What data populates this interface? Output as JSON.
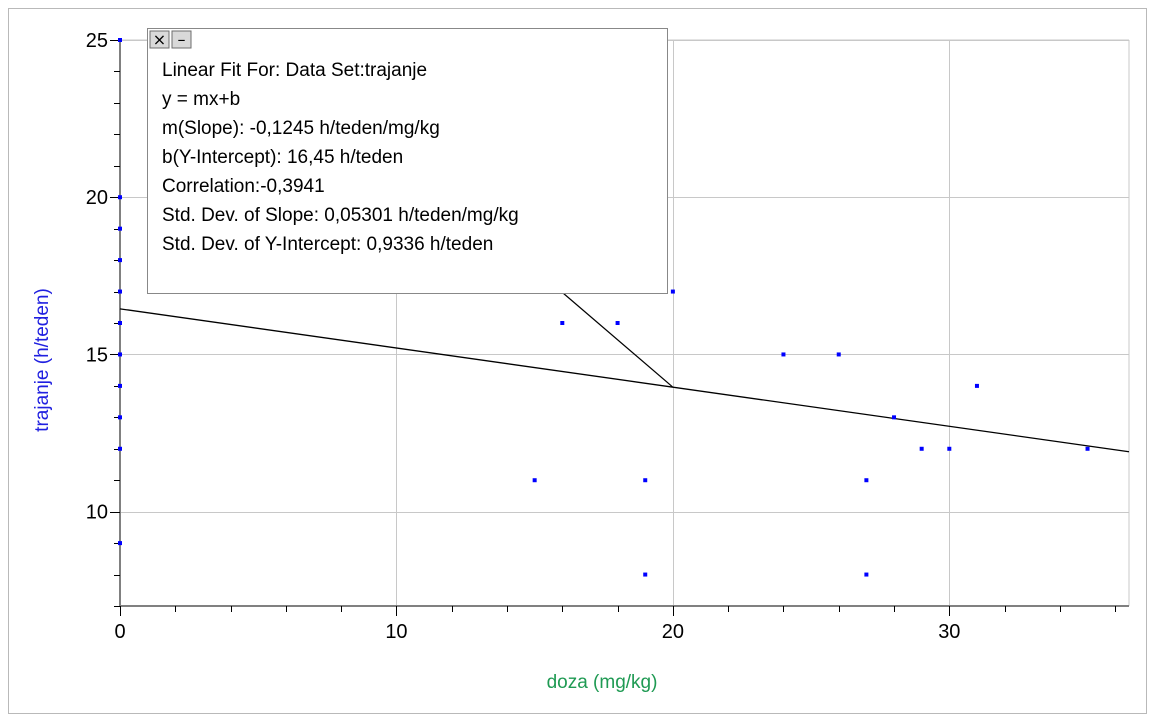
{
  "chart_data": {
    "type": "scatter",
    "title": "",
    "xlabel": "doza (mg/kg)",
    "ylabel": "trajanje (h/teden)",
    "xlim": [
      0,
      36.5
    ],
    "ylim": [
      7,
      25
    ],
    "xticks": [
      "0",
      "10",
      "20",
      "30"
    ],
    "yticks": [
      "10",
      "15",
      "20",
      "25"
    ],
    "xtick_values": [
      0,
      10,
      20,
      30
    ],
    "ytick_values": [
      10,
      15,
      20,
      25
    ],
    "grid": true,
    "label_colors": {
      "xlabel": "#1f9a53",
      "ylabel": "#2020e0"
    },
    "point_color": "#0000ff",
    "series": [
      {
        "points": [
          [
            0,
            25
          ],
          [
            0,
            20
          ],
          [
            0,
            19
          ],
          [
            0,
            18
          ],
          [
            0,
            17
          ],
          [
            0,
            16
          ],
          [
            0,
            15
          ],
          [
            0,
            14
          ],
          [
            0,
            13
          ],
          [
            0,
            12
          ],
          [
            0,
            9
          ],
          [
            15,
            11
          ],
          [
            16,
            16
          ],
          [
            18,
            16
          ],
          [
            19,
            11
          ],
          [
            19,
            8
          ],
          [
            20,
            17
          ],
          [
            24,
            15
          ],
          [
            26,
            15
          ],
          [
            27,
            11
          ],
          [
            27,
            8
          ],
          [
            28,
            13
          ],
          [
            29,
            12
          ],
          [
            30,
            12
          ],
          [
            31,
            14
          ],
          [
            35,
            12
          ]
        ]
      }
    ],
    "fit": {
      "slope": -0.1245,
      "intercept": 16.45,
      "leader_anchor": [
        20,
        13.96
      ]
    },
    "annotation": {
      "close_glyph": "×",
      "minimize_glyph": "–",
      "lines": [
        "Linear Fit For:  Data Set:trajanje",
        "y = mx+b",
        "m(Slope): -0,1245 h/teden/mg/kg",
        "b(Y-Intercept): 16,45 h/teden",
        "Correlation:-0,3941",
        "Std. Dev. of Slope: 0,05301 h/teden/mg/kg",
        "Std. Dev. of Y-Intercept: 0,9336 h/teden"
      ]
    }
  }
}
